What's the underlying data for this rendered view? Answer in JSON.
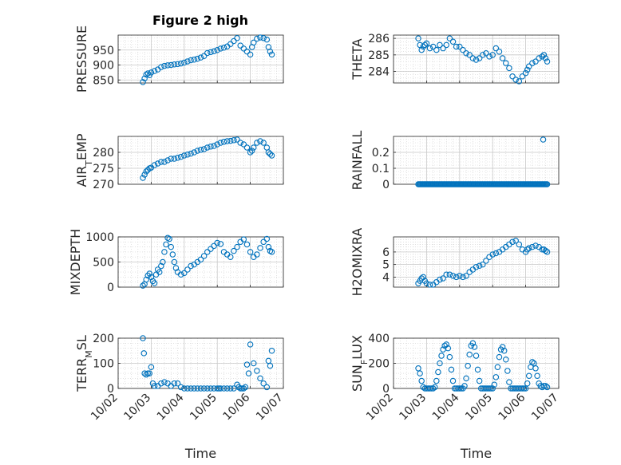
{
  "figure": {
    "title": "Figure 2 high"
  },
  "marker_color": "#0072BD",
  "chart_data": [
    {
      "type": "scatter",
      "ylabel": "PRESSURE",
      "ylim": [
        840,
        1000
      ],
      "yticks": [
        850,
        900,
        950
      ],
      "xlim": [
        0,
        5
      ],
      "xticks": [
        "10/02",
        "10/03",
        "10/04",
        "10/05",
        "10/06",
        "10/07"
      ],
      "grid": true,
      "x": [
        0.75,
        0.8,
        0.85,
        0.9,
        0.95,
        1.0,
        1.1,
        1.2,
        1.3,
        1.4,
        1.5,
        1.6,
        1.7,
        1.8,
        1.9,
        2.0,
        2.1,
        2.2,
        2.3,
        2.4,
        2.5,
        2.6,
        2.7,
        2.8,
        2.9,
        3.0,
        3.1,
        3.2,
        3.3,
        3.4,
        3.5,
        3.6,
        3.7,
        3.8,
        3.9,
        4.0,
        4.05,
        4.1,
        4.2,
        4.3,
        4.4,
        4.5,
        4.55,
        4.6,
        4.65
      ],
      "y": [
        843,
        855,
        868,
        872,
        866,
        875,
        880,
        885,
        893,
        897,
        899,
        900,
        902,
        903,
        905,
        908,
        912,
        916,
        918,
        921,
        925,
        930,
        940,
        943,
        946,
        950,
        955,
        958,
        962,
        970,
        980,
        990,
        965,
        955,
        945,
        935,
        960,
        975,
        988,
        992,
        990,
        985,
        960,
        945,
        935
      ]
    },
    {
      "type": "scatter",
      "ylabel": "THETA",
      "ylim": [
        283.3,
        286.2
      ],
      "yticks": [
        284,
        285,
        286
      ],
      "xlim": [
        0,
        5
      ],
      "xticks": [
        "10/02",
        "10/03",
        "10/04",
        "10/05",
        "10/06",
        "10/07"
      ],
      "grid": true,
      "x": [
        0.75,
        0.8,
        0.85,
        0.9,
        0.95,
        1.0,
        1.1,
        1.2,
        1.3,
        1.4,
        1.5,
        1.6,
        1.7,
        1.8,
        1.9,
        2.0,
        2.1,
        2.2,
        2.3,
        2.4,
        2.5,
        2.6,
        2.7,
        2.8,
        2.9,
        3.0,
        3.1,
        3.2,
        3.3,
        3.4,
        3.5,
        3.6,
        3.7,
        3.8,
        3.9,
        4.0,
        4.05,
        4.1,
        4.2,
        4.3,
        4.4,
        4.5,
        4.55,
        4.6,
        4.65
      ],
      "y": [
        286.0,
        285.6,
        285.3,
        285.5,
        285.6,
        285.7,
        285.4,
        285.5,
        285.3,
        285.6,
        285.4,
        285.6,
        286.0,
        285.8,
        285.5,
        285.5,
        285.3,
        285.1,
        285.0,
        284.8,
        284.7,
        284.8,
        285.0,
        285.1,
        284.9,
        285.0,
        285.4,
        285.2,
        284.8,
        284.5,
        284.2,
        283.7,
        283.5,
        283.4,
        283.7,
        283.9,
        284.1,
        284.3,
        284.5,
        284.6,
        284.8,
        284.9,
        285.0,
        284.8,
        284.6
      ]
    },
    {
      "type": "scatter",
      "ylabel": "AIR_TEMP",
      "ylim": [
        270,
        285
      ],
      "yticks": [
        270,
        275,
        280
      ],
      "xlim": [
        0,
        5
      ],
      "xticks": [
        "10/02",
        "10/03",
        "10/04",
        "10/05",
        "10/06",
        "10/07"
      ],
      "grid": true,
      "x": [
        0.75,
        0.8,
        0.85,
        0.9,
        0.95,
        1.0,
        1.1,
        1.2,
        1.3,
        1.4,
        1.5,
        1.6,
        1.7,
        1.8,
        1.9,
        2.0,
        2.1,
        2.2,
        2.3,
        2.4,
        2.5,
        2.6,
        2.7,
        2.8,
        2.9,
        3.0,
        3.1,
        3.2,
        3.3,
        3.4,
        3.5,
        3.6,
        3.7,
        3.8,
        3.9,
        4.0,
        4.05,
        4.1,
        4.2,
        4.3,
        4.4,
        4.5,
        4.55,
        4.6,
        4.65
      ],
      "y": [
        272,
        273,
        274,
        274.5,
        275,
        275.2,
        276,
        276.5,
        277,
        277,
        277.5,
        278,
        278,
        278.3,
        278.6,
        279,
        279.3,
        279.6,
        280,
        280.5,
        280.8,
        281,
        281.5,
        281.8,
        282,
        282.5,
        283,
        283.3,
        283.5,
        283.6,
        283.8,
        284,
        283,
        282.5,
        281.5,
        280,
        280.5,
        281.5,
        283,
        283.5,
        283,
        281.5,
        280,
        279.5,
        279
      ]
    },
    {
      "type": "scatter",
      "ylabel": "RAINFALL",
      "ylim": [
        0,
        0.3
      ],
      "yticks": [
        0,
        0.1,
        0.2
      ],
      "xlim": [
        0,
        5
      ],
      "xticks": [
        "10/02",
        "10/03",
        "10/04",
        "10/05",
        "10/06",
        "10/07"
      ],
      "grid": true,
      "x_start": 0.75,
      "x_end": 4.65,
      "x_step": 0.03,
      "baseline": 0,
      "x": [
        4.53
      ],
      "y": [
        0.28
      ]
    },
    {
      "type": "scatter",
      "ylabel": "MIXDEPTH",
      "ylim": [
        0,
        1000
      ],
      "yticks": [
        0,
        500,
        1000
      ],
      "xlim": [
        0,
        5
      ],
      "xticks": [
        "10/02",
        "10/03",
        "10/04",
        "10/05",
        "10/06",
        "10/07"
      ],
      "grid": true,
      "x": [
        0.75,
        0.8,
        0.85,
        0.9,
        0.95,
        1.0,
        1.05,
        1.1,
        1.15,
        1.2,
        1.25,
        1.3,
        1.35,
        1.4,
        1.45,
        1.5,
        1.55,
        1.6,
        1.65,
        1.7,
        1.75,
        1.8,
        1.9,
        2.0,
        2.1,
        2.2,
        2.3,
        2.4,
        2.5,
        2.6,
        2.7,
        2.8,
        2.9,
        3.0,
        3.1,
        3.2,
        3.3,
        3.4,
        3.5,
        3.6,
        3.7,
        3.8,
        3.9,
        4.0,
        4.1,
        4.2,
        4.3,
        4.4,
        4.5,
        4.55,
        4.6,
        4.65
      ],
      "y": [
        30,
        60,
        150,
        230,
        270,
        200,
        120,
        80,
        250,
        350,
        300,
        420,
        500,
        700,
        850,
        980,
        960,
        800,
        650,
        500,
        380,
        300,
        250,
        280,
        350,
        420,
        450,
        500,
        550,
        620,
        700,
        760,
        820,
        880,
        860,
        700,
        650,
        600,
        720,
        800,
        900,
        950,
        850,
        700,
        600,
        650,
        780,
        900,
        960,
        800,
        720,
        700
      ]
    },
    {
      "type": "scatter",
      "ylabel": "H2OMIXRA",
      "ylim": [
        3.2,
        7.2
      ],
      "yticks": [
        4,
        5,
        6
      ],
      "xlim": [
        0,
        5
      ],
      "xticks": [
        "10/02",
        "10/03",
        "10/04",
        "10/05",
        "10/06",
        "10/07"
      ],
      "grid": true,
      "x": [
        0.75,
        0.8,
        0.85,
        0.9,
        0.95,
        1.0,
        1.1,
        1.2,
        1.3,
        1.4,
        1.5,
        1.6,
        1.7,
        1.8,
        1.9,
        2.0,
        2.1,
        2.2,
        2.3,
        2.4,
        2.5,
        2.6,
        2.7,
        2.8,
        2.9,
        3.0,
        3.1,
        3.2,
        3.3,
        3.4,
        3.5,
        3.6,
        3.7,
        3.8,
        3.9,
        4.0,
        4.05,
        4.1,
        4.2,
        4.3,
        4.4,
        4.5,
        4.55,
        4.6,
        4.65
      ],
      "y": [
        3.5,
        3.7,
        3.9,
        4.0,
        3.7,
        3.5,
        3.4,
        3.4,
        3.6,
        3.8,
        3.9,
        4.2,
        4.2,
        4.1,
        4.0,
        4.1,
        4.0,
        4.1,
        4.4,
        4.6,
        4.8,
        4.9,
        5.0,
        5.3,
        5.6,
        5.8,
        5.9,
        6.0,
        6.2,
        6.4,
        6.6,
        6.8,
        6.9,
        6.6,
        6.2,
        6.0,
        6.2,
        6.3,
        6.4,
        6.5,
        6.4,
        6.2,
        6.2,
        6.1,
        6.0
      ]
    },
    {
      "type": "scatter",
      "ylabel": "TERR_MSL",
      "ylim": [
        0,
        200
      ],
      "yticks": [
        0,
        100,
        200
      ],
      "xlim": [
        0,
        5
      ],
      "xticks": [
        "10/02",
        "10/03",
        "10/04",
        "10/05",
        "10/06",
        "10/07"
      ],
      "grid": true,
      "x": [
        0.75,
        0.78,
        0.8,
        0.85,
        0.9,
        0.95,
        1.0,
        1.05,
        1.1,
        1.2,
        1.3,
        1.4,
        1.5,
        1.6,
        1.7,
        1.8,
        1.9,
        2.0,
        2.1,
        2.2,
        2.3,
        2.4,
        2.5,
        2.6,
        2.7,
        2.8,
        2.9,
        3.0,
        3.05,
        3.1,
        3.2,
        3.3,
        3.4,
        3.5,
        3.6,
        3.65,
        3.7,
        3.75,
        3.8,
        3.85,
        3.9,
        3.95,
        4.0,
        4.1,
        4.2,
        4.3,
        4.4,
        4.5,
        4.55,
        4.6,
        4.65
      ],
      "y": [
        200,
        140,
        60,
        55,
        60,
        60,
        85,
        20,
        10,
        10,
        20,
        25,
        20,
        10,
        20,
        20,
        5,
        0,
        0,
        0,
        0,
        0,
        0,
        0,
        0,
        0,
        0,
        0,
        0,
        0,
        0,
        0,
        0,
        0,
        15,
        5,
        0,
        0,
        0,
        5,
        95,
        60,
        175,
        100,
        70,
        40,
        20,
        5,
        110,
        90,
        150
      ]
    },
    {
      "type": "scatter",
      "ylabel": "SUN_FLUX",
      "ylim": [
        0,
        400
      ],
      "yticks": [
        0,
        200,
        400
      ],
      "xlim": [
        0,
        5
      ],
      "xticks": [
        "10/02",
        "10/03",
        "10/04",
        "10/05",
        "10/06",
        "10/07"
      ],
      "grid": true,
      "x": [
        0.75,
        0.8,
        0.85,
        0.9,
        0.95,
        1.0,
        1.05,
        1.1,
        1.15,
        1.2,
        1.25,
        1.3,
        1.35,
        1.4,
        1.45,
        1.5,
        1.55,
        1.6,
        1.65,
        1.7,
        1.75,
        1.8,
        1.85,
        1.9,
        1.95,
        2.0,
        2.05,
        2.1,
        2.15,
        2.2,
        2.25,
        2.3,
        2.35,
        2.4,
        2.45,
        2.5,
        2.55,
        2.6,
        2.65,
        2.7,
        2.75,
        2.8,
        2.85,
        2.9,
        2.95,
        3.0,
        3.05,
        3.1,
        3.15,
        3.2,
        3.25,
        3.3,
        3.35,
        3.4,
        3.45,
        3.5,
        3.55,
        3.6,
        3.65,
        3.7,
        3.75,
        3.8,
        3.85,
        3.9,
        3.95,
        4.0,
        4.05,
        4.1,
        4.15,
        4.2,
        4.25,
        4.3,
        4.35,
        4.4,
        4.45,
        4.5,
        4.55,
        4.6,
        4.65
      ],
      "y": [
        160,
        120,
        60,
        10,
        0,
        0,
        0,
        0,
        0,
        0,
        10,
        60,
        130,
        200,
        260,
        310,
        340,
        350,
        320,
        250,
        150,
        60,
        0,
        0,
        0,
        0,
        0,
        0,
        20,
        80,
        180,
        270,
        340,
        360,
        330,
        260,
        150,
        60,
        0,
        0,
        0,
        0,
        0,
        0,
        0,
        0,
        30,
        90,
        170,
        250,
        310,
        330,
        300,
        230,
        140,
        50,
        0,
        0,
        0,
        0,
        0,
        0,
        0,
        0,
        0,
        0,
        40,
        100,
        170,
        210,
        200,
        160,
        100,
        40,
        20,
        10,
        20,
        20,
        10
      ]
    }
  ]
}
